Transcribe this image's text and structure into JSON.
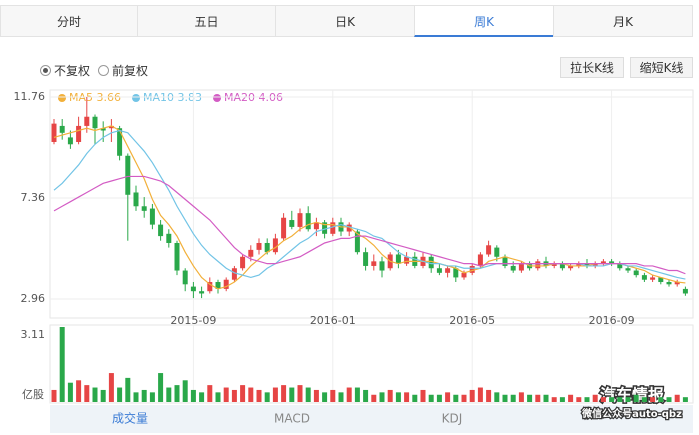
{
  "tabs": [
    "分时",
    "五日",
    "日K",
    "周K",
    "月K"
  ],
  "adjust_options": [
    "不复权",
    "前复权"
  ],
  "buttons": [
    "拉长K线",
    "缩短K线"
  ],
  "indicator_tabs": [
    "成交量",
    "MACD",
    "KDJ"
  ],
  "watermark": {
    "title": "汽车情报",
    "subtitle": "微信公众号auto-qbz"
  },
  "chart_data": [
    {
      "type": "candlestick",
      "categories": [
        null,
        null,
        null,
        null,
        null,
        null,
        null,
        null,
        null,
        null,
        null,
        null,
        null,
        null,
        null,
        null,
        null,
        "2015-09",
        null,
        null,
        null,
        null,
        null,
        null,
        null,
        null,
        null,
        null,
        null,
        null,
        null,
        null,
        null,
        null,
        "2016-01",
        null,
        null,
        null,
        null,
        null,
        null,
        null,
        null,
        null,
        null,
        null,
        null,
        null,
        null,
        null,
        null,
        "2016-05",
        null,
        null,
        null,
        null,
        null,
        null,
        null,
        null,
        null,
        null,
        null,
        null,
        null,
        null,
        null,
        null,
        "2016-09",
        null,
        null,
        null,
        null,
        null,
        null,
        null,
        null,
        null
      ],
      "open": [
        9.8,
        10.5,
        10.0,
        9.8,
        10.5,
        10.9,
        10.4,
        10.4,
        10.4,
        9.2,
        7.6,
        7.0,
        6.9,
        6.2,
        5.8,
        5.4,
        4.2,
        3.5,
        3.3,
        3.3,
        3.7,
        3.4,
        3.8,
        4.3,
        4.8,
        5.1,
        5.4,
        5.0,
        5.6,
        6.4,
        6.1,
        6.7,
        6.0,
        6.3,
        5.8,
        6.3,
        5.9,
        5.9,
        5.0,
        4.4,
        4.6,
        4.3,
        4.9,
        4.5,
        4.8,
        4.4,
        4.8,
        4.3,
        4.1,
        4.3,
        3.9,
        4.1,
        4.4,
        4.9,
        5.2,
        4.8,
        4.4,
        4.2,
        4.5,
        4.3,
        4.6,
        4.4,
        4.5,
        4.3,
        4.4,
        4.5,
        4.4,
        4.5,
        4.6,
        4.5,
        4.3,
        4.2,
        4.0,
        3.8,
        3.9,
        3.7,
        3.6,
        3.4
      ],
      "high": [
        10.8,
        10.8,
        10.3,
        10.9,
        11.76,
        11.0,
        10.7,
        10.8,
        10.5,
        9.3,
        7.9,
        7.4,
        7.1,
        6.4,
        6.0,
        5.5,
        4.3,
        3.7,
        3.5,
        3.9,
        3.8,
        3.9,
        4.4,
        4.9,
        5.3,
        5.6,
        5.6,
        5.8,
        6.7,
        6.8,
        6.9,
        7.0,
        6.5,
        6.4,
        6.5,
        6.5,
        6.3,
        6.0,
        5.2,
        4.9,
        4.8,
        5.0,
        5.1,
        5.0,
        5.0,
        5.0,
        4.9,
        4.5,
        4.4,
        4.4,
        4.2,
        4.5,
        5.0,
        5.5,
        5.3,
        4.9,
        4.6,
        4.6,
        4.6,
        4.7,
        4.8,
        4.6,
        4.6,
        4.5,
        4.6,
        4.7,
        4.6,
        4.7,
        4.7,
        4.6,
        4.4,
        4.3,
        4.1,
        4.0,
        3.9,
        3.8,
        3.8,
        3.5
      ],
      "low": [
        9.7,
        9.9,
        9.5,
        9.7,
        10.2,
        9.7,
        9.8,
        9.8,
        9.0,
        5.5,
        6.8,
        6.5,
        6.0,
        5.5,
        5.2,
        4.0,
        3.3,
        3.0,
        3.0,
        3.2,
        3.2,
        3.3,
        3.7,
        4.2,
        4.6,
        4.9,
        4.9,
        4.9,
        5.5,
        6.0,
        5.9,
        5.9,
        5.7,
        5.6,
        5.7,
        5.7,
        5.7,
        4.9,
        4.2,
        4.2,
        3.9,
        4.2,
        4.3,
        4.4,
        4.3,
        4.3,
        4.1,
        4.0,
        3.9,
        3.7,
        3.8,
        4.0,
        4.3,
        4.8,
        4.6,
        4.3,
        4.1,
        4.1,
        4.2,
        4.2,
        4.3,
        4.3,
        4.2,
        4.2,
        4.3,
        4.3,
        4.3,
        4.4,
        4.4,
        4.2,
        4.1,
        3.9,
        3.7,
        3.7,
        3.6,
        3.5,
        3.5,
        3.1
      ],
      "close": [
        10.6,
        10.2,
        9.7,
        10.5,
        10.9,
        10.4,
        10.3,
        10.5,
        9.2,
        7.5,
        7.0,
        6.8,
        6.2,
        5.7,
        5.4,
        4.2,
        3.6,
        3.3,
        3.2,
        3.7,
        3.4,
        3.8,
        4.3,
        4.8,
        5.1,
        5.4,
        5.0,
        5.6,
        6.5,
        6.1,
        6.7,
        6.0,
        6.3,
        5.8,
        6.3,
        5.9,
        6.2,
        5.0,
        4.4,
        4.6,
        4.2,
        4.9,
        4.5,
        4.8,
        4.4,
        4.8,
        4.3,
        4.1,
        4.3,
        3.9,
        4.1,
        4.4,
        4.9,
        5.3,
        4.8,
        4.4,
        4.2,
        4.5,
        4.3,
        4.6,
        4.4,
        4.5,
        4.3,
        4.4,
        4.5,
        4.4,
        4.5,
        4.6,
        4.5,
        4.3,
        4.2,
        4.0,
        3.8,
        3.9,
        3.7,
        3.6,
        3.7,
        3.2
      ],
      "up_color": "#e64545",
      "down_color": "#2aa84a",
      "series": [
        {
          "name": "MA5",
          "color": "#f2b03a",
          "values": [
            10.0,
            10.1,
            10.2,
            10.3,
            10.4,
            10.3,
            10.4,
            10.5,
            10.3,
            9.6,
            8.9,
            8.2,
            7.3,
            6.6,
            6.2,
            5.7,
            5.0,
            4.4,
            3.9,
            3.6,
            3.4,
            3.5,
            3.7,
            4.0,
            4.4,
            4.7,
            5.0,
            5.2,
            5.5,
            5.7,
            6.0,
            6.2,
            6.3,
            6.2,
            6.2,
            6.1,
            6.1,
            5.8,
            5.6,
            5.3,
            4.9,
            4.6,
            4.5,
            4.6,
            4.6,
            4.6,
            4.6,
            4.5,
            4.4,
            4.3,
            4.1,
            4.2,
            4.3,
            4.6,
            4.7,
            4.8,
            4.7,
            4.6,
            4.4,
            4.4,
            4.4,
            4.5,
            4.5,
            4.4,
            4.4,
            4.4,
            4.5,
            4.5,
            4.5,
            4.5,
            4.4,
            4.3,
            4.2,
            4.0,
            3.9,
            3.8,
            3.7,
            3.66
          ]
        },
        {
          "name": "MA10",
          "color": "#72c4e6",
          "values": [
            7.7,
            8.0,
            8.4,
            8.8,
            9.3,
            9.7,
            10.0,
            10.2,
            10.3,
            10.2,
            9.8,
            9.4,
            8.9,
            8.3,
            7.7,
            7.0,
            6.4,
            5.8,
            5.3,
            4.9,
            4.6,
            4.3,
            4.1,
            4.0,
            3.9,
            4.0,
            4.3,
            4.5,
            4.8,
            5.1,
            5.4,
            5.6,
            5.9,
            6.0,
            6.1,
            6.2,
            6.1,
            6.0,
            5.9,
            5.7,
            5.6,
            5.3,
            5.0,
            4.8,
            4.7,
            4.6,
            4.5,
            4.5,
            4.4,
            4.4,
            4.3,
            4.3,
            4.3,
            4.4,
            4.5,
            4.5,
            4.5,
            4.5,
            4.5,
            4.5,
            4.5,
            4.5,
            4.5,
            4.5,
            4.5,
            4.4,
            4.4,
            4.4,
            4.5,
            4.5,
            4.4,
            4.4,
            4.3,
            4.2,
            4.1,
            4.0,
            3.9,
            3.83
          ]
        },
        {
          "name": "MA20",
          "color": "#d35cc4",
          "values": [
            6.8,
            7.0,
            7.2,
            7.4,
            7.6,
            7.8,
            8.0,
            8.1,
            8.2,
            8.3,
            8.3,
            8.3,
            8.2,
            8.1,
            7.9,
            7.6,
            7.3,
            7.0,
            6.7,
            6.4,
            6.0,
            5.6,
            5.2,
            4.9,
            4.7,
            4.6,
            4.5,
            4.5,
            4.6,
            4.7,
            4.8,
            5.0,
            5.2,
            5.4,
            5.5,
            5.6,
            5.6,
            5.7,
            5.7,
            5.6,
            5.5,
            5.4,
            5.3,
            5.2,
            5.1,
            5.0,
            4.9,
            4.8,
            4.7,
            4.6,
            4.5,
            4.5,
            4.4,
            4.5,
            4.5,
            4.5,
            4.5,
            4.5,
            4.5,
            4.5,
            4.5,
            4.5,
            4.5,
            4.5,
            4.5,
            4.5,
            4.5,
            4.5,
            4.5,
            4.5,
            4.5,
            4.5,
            4.4,
            4.4,
            4.3,
            4.2,
            4.2,
            4.06
          ]
        }
      ],
      "ylim": [
        2.96,
        11.76
      ],
      "yticks": [
        11.76,
        7.36,
        2.96
      ],
      "grid": true
    },
    {
      "type": "bar",
      "values": [
        0.5,
        3.11,
        0.8,
        0.9,
        0.7,
        0.6,
        0.5,
        1.2,
        0.6,
        1.0,
        0.4,
        0.5,
        0.4,
        1.2,
        0.6,
        0.7,
        0.9,
        0.5,
        0.4,
        0.7,
        0.4,
        0.6,
        0.5,
        0.7,
        0.6,
        0.5,
        0.4,
        0.6,
        0.7,
        0.6,
        0.7,
        0.6,
        0.5,
        0.4,
        0.5,
        0.4,
        0.6,
        0.6,
        0.5,
        0.3,
        0.4,
        0.5,
        0.4,
        0.4,
        0.3,
        0.5,
        0.3,
        0.3,
        0.4,
        0.3,
        0.3,
        0.5,
        0.6,
        0.5,
        0.4,
        0.3,
        0.3,
        0.4,
        0.3,
        0.3,
        0.3,
        0.2,
        0.2,
        0.3,
        0.2,
        0.2,
        0.3,
        0.2,
        0.2,
        0.2,
        0.2,
        0.3,
        0.2,
        0.2,
        0.2,
        0.2,
        0.3,
        0.2
      ],
      "ylim": [
        0,
        3.11
      ],
      "yticks": [
        3.11
      ],
      "unit": "亿股"
    }
  ]
}
